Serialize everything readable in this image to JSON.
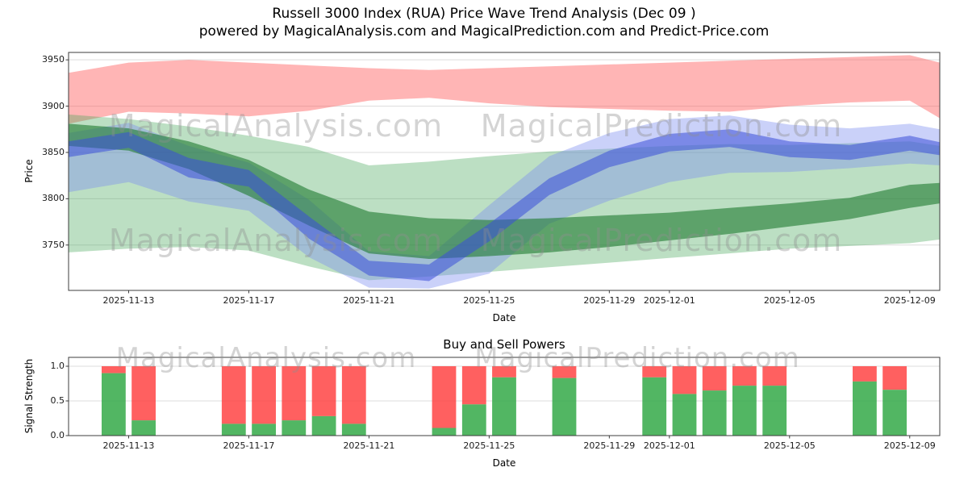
{
  "page": {
    "title_line1": "Russell 3000 Index (RUA) Price Wave Trend Analysis (Dec 09 )",
    "title_line2": "powered by MagicalAnalysis.com and MagicalPrediction.com and Predict-Price.com"
  },
  "watermarks": {
    "left": "MagicalAnalysis.com",
    "right": "MagicalPrediction.com"
  },
  "price_chart": {
    "ylabel": "Price",
    "xlabel": "Date",
    "y_ticks": [
      3750,
      3800,
      3850,
      3900,
      3950
    ],
    "x_ticks": [
      "2025-11-13",
      "2025-11-17",
      "2025-11-21",
      "2025-11-25",
      "2025-11-29",
      "2025-12-01",
      "2025-12-05",
      "2025-12-09"
    ]
  },
  "power_chart": {
    "title": "Buy and Sell Powers",
    "ylabel": "Signal Strength",
    "xlabel": "Date",
    "y_ticks": [
      0.0,
      0.5,
      1.0
    ],
    "x_ticks": [
      "2025-11-13",
      "2025-11-17",
      "2025-11-21",
      "2025-11-25",
      "2025-11-29",
      "2025-12-01",
      "2025-12-05",
      "2025-12-09"
    ]
  },
  "chart_data": [
    {
      "type": "area",
      "title": "Russell 3000 Index (RUA) Price Wave Trend Analysis",
      "xlabel": "Date",
      "ylabel": "Price",
      "x_domain": [
        "2025-11-11",
        "2025-12-10"
      ],
      "ylim": [
        3701,
        3958
      ],
      "grid": true,
      "x": [
        "2025-11-11",
        "2025-11-13",
        "2025-11-15",
        "2025-11-17",
        "2025-11-19",
        "2025-11-21",
        "2025-11-23",
        "2025-11-25",
        "2025-11-27",
        "2025-11-29",
        "2025-12-01",
        "2025-12-03",
        "2025-12-05",
        "2025-12-07",
        "2025-12-09",
        "2025-12-10"
      ],
      "series": [
        {
          "name": "resistance-band-red",
          "color": "#ff5a5a",
          "opacity": 0.45,
          "top": [
            3936,
            3947,
            3950,
            3947,
            3944,
            3941,
            3939,
            3941,
            3943,
            3945,
            3947,
            3949,
            3951,
            3953,
            3955,
            3947
          ],
          "bottom": [
            3881,
            3894,
            3892,
            3889,
            3895,
            3906,
            3909,
            3903,
            3899,
            3897,
            3895,
            3894,
            3900,
            3904,
            3906,
            3887
          ]
        },
        {
          "name": "support-band-green-outer",
          "color": "#3ea352",
          "opacity": 0.35,
          "top": [
            3891,
            3886,
            3878,
            3868,
            3856,
            3836,
            3840,
            3846,
            3851,
            3854,
            3857,
            3859,
            3858,
            3860,
            3862,
            3857
          ],
          "bottom": [
            3742,
            3746,
            3748,
            3744,
            3727,
            3712,
            3716,
            3721,
            3726,
            3731,
            3736,
            3741,
            3746,
            3749,
            3752,
            3756
          ]
        },
        {
          "name": "forecast-band-blue-outer",
          "color": "#7b8cf0",
          "opacity": 0.4,
          "top": [
            3871,
            3882,
            3857,
            3839,
            3799,
            3743,
            3738,
            3793,
            3846,
            3871,
            3886,
            3890,
            3880,
            3876,
            3881,
            3875
          ],
          "bottom": [
            3807,
            3818,
            3797,
            3787,
            3737,
            3704,
            3703,
            3719,
            3773,
            3798,
            3818,
            3828,
            3829,
            3833,
            3838,
            3836
          ]
        },
        {
          "name": "support-band-green-inner",
          "color": "#1e7a2e",
          "opacity": 0.6,
          "top": [
            3881,
            3876,
            3862,
            3842,
            3810,
            3786,
            3779,
            3777,
            3779,
            3782,
            3785,
            3790,
            3795,
            3801,
            3815,
            3817
          ],
          "bottom": [
            3857,
            3852,
            3832,
            3803,
            3771,
            3741,
            3735,
            3738,
            3742,
            3748,
            3755,
            3762,
            3770,
            3778,
            3790,
            3795
          ]
        },
        {
          "name": "forecast-band-blue-inner",
          "color": "#3a4fd8",
          "opacity": 0.55,
          "top": [
            3862,
            3872,
            3844,
            3831,
            3781,
            3733,
            3729,
            3773,
            3822,
            3852,
            3870,
            3875,
            3862,
            3858,
            3868,
            3861
          ],
          "bottom": [
            3845,
            3855,
            3823,
            3813,
            3757,
            3717,
            3711,
            3754,
            3804,
            3834,
            3851,
            3856,
            3845,
            3842,
            3852,
            3847
          ]
        }
      ]
    },
    {
      "type": "bar",
      "title": "Buy and Sell Powers",
      "xlabel": "Date",
      "ylabel": "Signal Strength",
      "ylim": [
        0,
        1.128
      ],
      "stack_total": 1.0,
      "grid": true,
      "colors": {
        "buy": "#3fae52",
        "sell": "#ff4444"
      },
      "bars": [
        {
          "date": "2025-11-12",
          "buy": 0.9,
          "sell": 0.1
        },
        {
          "date": "2025-11-13",
          "buy": 0.22,
          "sell": 0.78
        },
        {
          "date": "2025-11-16",
          "buy": 0.17,
          "sell": 0.83
        },
        {
          "date": "2025-11-17",
          "buy": 0.17,
          "sell": 0.83
        },
        {
          "date": "2025-11-18",
          "buy": 0.22,
          "sell": 0.78
        },
        {
          "date": "2025-11-19",
          "buy": 0.28,
          "sell": 0.72
        },
        {
          "date": "2025-11-20",
          "buy": 0.17,
          "sell": 0.83
        },
        {
          "date": "2025-11-23",
          "buy": 0.11,
          "sell": 0.89
        },
        {
          "date": "2025-11-24",
          "buy": 0.45,
          "sell": 0.55
        },
        {
          "date": "2025-11-25",
          "buy": 0.84,
          "sell": 0.16
        },
        {
          "date": "2025-11-27",
          "buy": 0.83,
          "sell": 0.17
        },
        {
          "date": "2025-11-30",
          "buy": 0.84,
          "sell": 0.16
        },
        {
          "date": "2025-12-01",
          "buy": 0.6,
          "sell": 0.4
        },
        {
          "date": "2025-12-02",
          "buy": 0.65,
          "sell": 0.35
        },
        {
          "date": "2025-12-03",
          "buy": 0.72,
          "sell": 0.28
        },
        {
          "date": "2025-12-04",
          "buy": 0.72,
          "sell": 0.28
        },
        {
          "date": "2025-12-07",
          "buy": 0.78,
          "sell": 0.22
        },
        {
          "date": "2025-12-08",
          "buy": 0.66,
          "sell": 0.34
        }
      ]
    }
  ]
}
